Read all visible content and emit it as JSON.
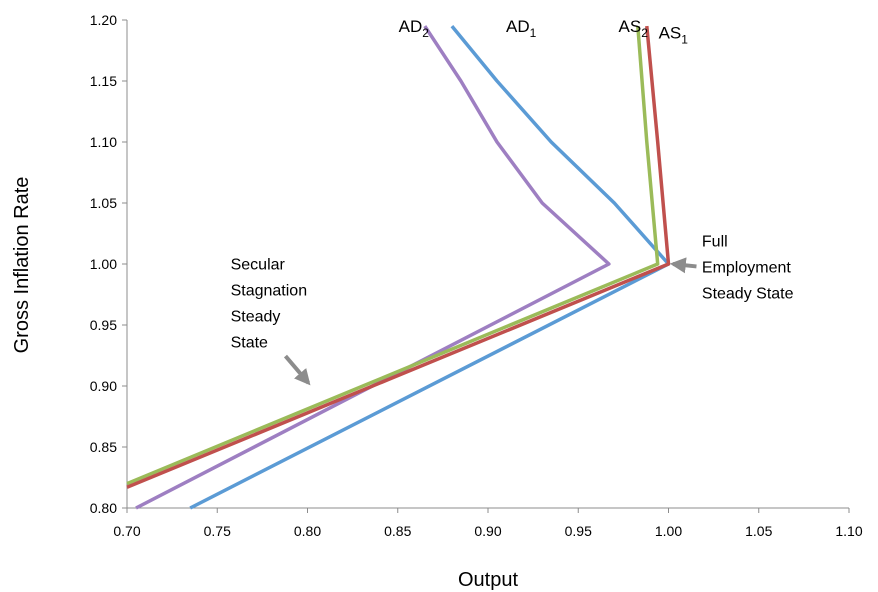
{
  "chart_data": {
    "type": "line",
    "xlabel": "Output",
    "ylabel": "Gross Inflation Rate",
    "xlim": [
      0.7,
      1.1
    ],
    "ylim": [
      0.8,
      1.2
    ],
    "x_ticks": [
      "0.70",
      "0.75",
      "0.80",
      "0.85",
      "0.90",
      "0.95",
      "1.00",
      "1.05",
      "1.10"
    ],
    "y_ticks": [
      "0.80",
      "0.85",
      "0.90",
      "0.95",
      "1.00",
      "1.05",
      "1.10",
      "1.15",
      "1.20"
    ],
    "grid": false,
    "series": [
      {
        "base": "AD",
        "sub": "1",
        "color": "#5b9bd5",
        "label_pos": {
          "x": 0.91,
          "y": 1.19
        },
        "points": [
          [
            0.735,
            0.8
          ],
          [
            1.0,
            1.0
          ],
          [
            0.97,
            1.05
          ],
          [
            0.935,
            1.1
          ],
          [
            0.905,
            1.15
          ],
          [
            0.88,
            1.195
          ]
        ]
      },
      {
        "base": "AD",
        "sub": "2",
        "color": "#9e7fc2",
        "label_pos": {
          "x": 0.8505,
          "y": 1.19
        },
        "points": [
          [
            0.705,
            0.8
          ],
          [
            0.967,
            1.0
          ],
          [
            0.93,
            1.05
          ],
          [
            0.905,
            1.1
          ],
          [
            0.885,
            1.15
          ],
          [
            0.865,
            1.195
          ]
        ]
      },
      {
        "base": "AS",
        "sub": "2",
        "color": "#9bbb59",
        "label_pos": {
          "x": 0.9723,
          "y": 1.19
        },
        "points": [
          [
            0.7,
            0.82
          ],
          [
            0.994,
            1.0
          ],
          [
            0.988,
            1.1
          ],
          [
            0.983,
            1.195
          ]
        ]
      },
      {
        "base": "AS",
        "sub": "1",
        "color": "#c0504d",
        "label_pos": {
          "x": 0.9945,
          "y": 1.185
        },
        "points": [
          [
            0.7,
            0.817
          ],
          [
            1.0,
            1.0
          ],
          [
            0.994,
            1.1
          ],
          [
            0.988,
            1.195
          ]
        ]
      }
    ],
    "annotations": [
      {
        "lines": [
          "Secular",
          "Stagnation",
          "Steady",
          "State"
        ],
        "anchor": "start",
        "text_at": [
          0.7574,
          0.9955
        ],
        "arrow_from": [
          0.7878,
          0.9245
        ],
        "arrow_to": [
          0.8005,
          0.9025
        ]
      },
      {
        "lines": [
          "Full",
          "Employment",
          "Steady State"
        ],
        "anchor": "start",
        "text_at": [
          1.0185,
          1.0145
        ],
        "arrow_from": [
          1.0155,
          0.998
        ],
        "arrow_to": [
          1.0025,
          1.0
        ]
      }
    ]
  }
}
